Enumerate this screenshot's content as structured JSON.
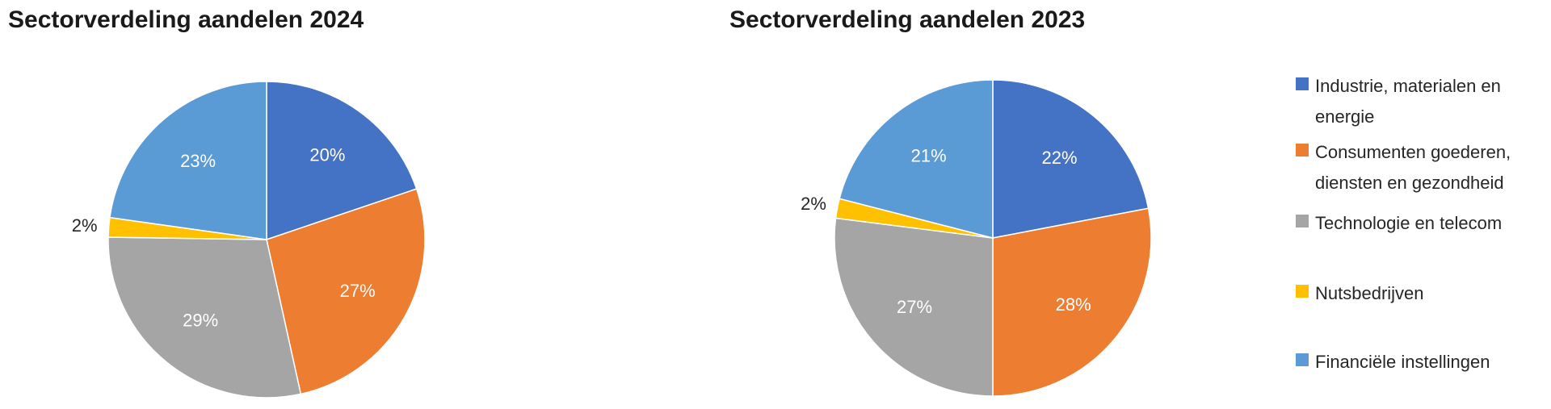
{
  "chart_data": [
    {
      "type": "pie",
      "title": "Sectorverdeling aandelen 2024",
      "categories": [
        "Industrie, materialen en energie",
        "Consumenten goederen, diensten en gezondheid",
        "Technologie en telecom",
        "Nutsbedrijven",
        "Financiële instellingen"
      ],
      "values": [
        20,
        27,
        29,
        2,
        23
      ],
      "labels": [
        "20%",
        "27%",
        "29%",
        "2%",
        "23%"
      ]
    },
    {
      "type": "pie",
      "title": "Sectorverdeling aandelen 2023",
      "categories": [
        "Industrie, materialen en energie",
        "Consumenten goederen, diensten en gezondheid",
        "Technologie en telecom",
        "Nutsbedrijven",
        "Financiële instellingen"
      ],
      "values": [
        22,
        28,
        27,
        2,
        21
      ],
      "labels": [
        "22%",
        "28%",
        "27%",
        "2%",
        "21%"
      ]
    }
  ],
  "colors": [
    "#4472C4",
    "#ED7D31",
    "#A5A5A5",
    "#FFC000",
    "#5B9BD5"
  ],
  "legend": {
    "position": "right",
    "items": [
      {
        "label": "Industrie, materialen en energie",
        "color": "#4472C4"
      },
      {
        "label": "Consumenten goederen, diensten en gezondheid",
        "color": "#ED7D31"
      },
      {
        "label": "Technologie en telecom",
        "color": "#A5A5A5"
      },
      {
        "label": "Nutsbedrijven",
        "color": "#FFC000"
      },
      {
        "label": "Financiële instellingen",
        "color": "#5B9BD5"
      }
    ]
  }
}
